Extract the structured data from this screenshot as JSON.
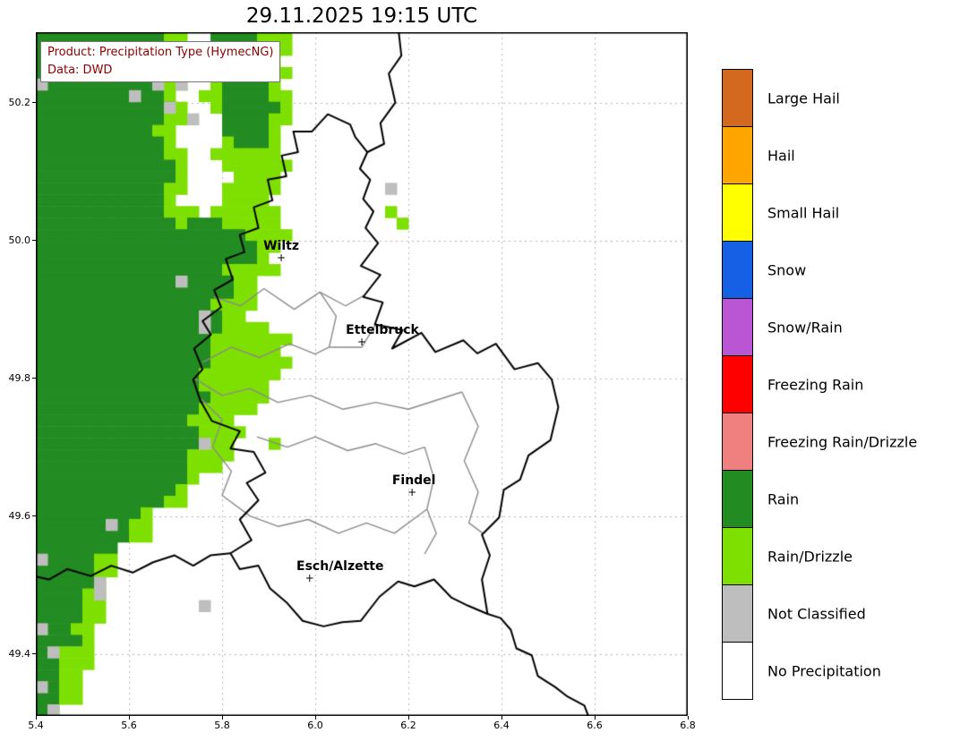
{
  "title": "29.11.2025 19:15 UTC",
  "info_box": {
    "line1": "Product: Precipitation Type (HymecNG)",
    "line2": "Data: DWD",
    "text_color": "#8b0000"
  },
  "axes": {
    "lon_range": [
      5.4,
      6.8
    ],
    "lat_range": [
      49.31,
      50.302
    ],
    "x_ticks": [
      "5.4",
      "5.6",
      "5.8",
      "6.0",
      "6.2",
      "6.4",
      "6.6",
      "6.8"
    ],
    "x_values": [
      5.4,
      5.6,
      5.8,
      6.0,
      6.2,
      6.4,
      6.6,
      6.8
    ],
    "y_ticks": [
      "50.2",
      "50.0",
      "49.8",
      "49.6",
      "49.4"
    ],
    "y_values": [
      50.2,
      50.0,
      49.8,
      49.6,
      49.4
    ]
  },
  "cities": [
    {
      "name": "Wiltz",
      "lon": 5.927,
      "lat": 49.975,
      "label_dx": 0
    },
    {
      "name": "Ettelbruck",
      "lon": 6.1,
      "lat": 49.853,
      "label_dx": 23
    },
    {
      "name": "Findel",
      "lon": 6.208,
      "lat": 49.634,
      "label_dx": 2
    },
    {
      "name": "Esch/Alzette",
      "lon": 5.988,
      "lat": 49.51,
      "label_dx": 34
    }
  ],
  "legend": {
    "entries": [
      {
        "label": "Large Hail",
        "color": "#d2691e"
      },
      {
        "label": "Hail",
        "color": "#ffa500"
      },
      {
        "label": "Small Hail",
        "color": "#ffff00"
      },
      {
        "label": "Snow",
        "color": "#1560e4"
      },
      {
        "label": "Snow/Rain",
        "color": "#ba55d3"
      },
      {
        "label": "Freezing Rain",
        "color": "#ff0000"
      },
      {
        "label": "Freezing Rain/Drizzle",
        "color": "#f08080"
      },
      {
        "label": "Rain",
        "color": "#228b22"
      },
      {
        "label": "Rain/Drizzle",
        "color": "#7ee000"
      },
      {
        "label": "Not Classified",
        "color": "#bebebe"
      },
      {
        "label": "No Precipitation",
        "color": "#ffffff"
      }
    ]
  },
  "map": {
    "colors": {
      "rain": "#228b22",
      "rain_drizzle": "#7ee000",
      "not_classified": "#bebebe",
      "background": "#ffffff",
      "grid": "#b5b5b5",
      "district_border": "#8a8a8a",
      "country_border": "#000000"
    },
    "regions": {
      "drizzle": [
        [
          5.37,
          50.32
        ],
        [
          5.712,
          50.32
        ],
        [
          5.732,
          50.262
        ],
        [
          5.7,
          50.22
        ],
        [
          5.735,
          50.188
        ],
        [
          5.7,
          50.152
        ],
        [
          5.73,
          50.1
        ],
        [
          5.712,
          50.065
        ],
        [
          5.762,
          50.03
        ],
        [
          5.8,
          50.06
        ],
        [
          5.822,
          50.092
        ],
        [
          5.79,
          50.126
        ],
        [
          5.8,
          50.17
        ],
        [
          5.762,
          50.21
        ],
        [
          5.778,
          50.262
        ],
        [
          5.762,
          50.32
        ],
        [
          5.958,
          50.32
        ],
        [
          5.93,
          50.24
        ],
        [
          5.955,
          50.19
        ],
        [
          5.925,
          50.14
        ],
        [
          5.94,
          50.1
        ],
        [
          5.9,
          50.065
        ],
        [
          5.93,
          50.03
        ],
        [
          5.935,
          50.005
        ],
        [
          5.9,
          49.985
        ],
        [
          5.92,
          49.955
        ],
        [
          5.86,
          49.935
        ],
        [
          5.88,
          49.9
        ],
        [
          5.845,
          49.885
        ],
        [
          5.95,
          49.865
        ],
        [
          5.93,
          49.835
        ],
        [
          5.95,
          49.8
        ],
        [
          5.9,
          49.785
        ],
        [
          5.87,
          49.755
        ],
        [
          5.815,
          49.745
        ],
        [
          5.84,
          49.71
        ],
        [
          5.79,
          49.665
        ],
        [
          5.745,
          49.65
        ],
        [
          5.72,
          49.615
        ],
        [
          5.65,
          49.6
        ],
        [
          5.63,
          49.565
        ],
        [
          5.58,
          49.555
        ],
        [
          5.555,
          49.52
        ],
        [
          5.56,
          49.475
        ],
        [
          5.53,
          49.445
        ],
        [
          5.525,
          49.4
        ],
        [
          5.5,
          49.375
        ],
        [
          5.515,
          49.345
        ],
        [
          5.48,
          49.325
        ],
        [
          5.455,
          49.295
        ],
        [
          5.37,
          49.295
        ]
      ],
      "rain_main": [
        [
          5.37,
          50.32
        ],
        [
          5.68,
          50.32
        ],
        [
          5.7,
          50.262
        ],
        [
          5.672,
          50.222
        ],
        [
          5.7,
          50.188
        ],
        [
          5.66,
          50.15
        ],
        [
          5.692,
          50.1
        ],
        [
          5.658,
          50.048
        ],
        [
          5.72,
          50.022
        ],
        [
          5.762,
          50.036
        ],
        [
          5.88,
          50.0
        ],
        [
          5.858,
          49.968
        ],
        [
          5.8,
          49.958
        ],
        [
          5.828,
          49.928
        ],
        [
          5.778,
          49.91
        ],
        [
          5.808,
          49.88
        ],
        [
          5.768,
          49.858
        ],
        [
          5.798,
          49.828
        ],
        [
          5.748,
          49.8
        ],
        [
          5.778,
          49.768
        ],
        [
          5.735,
          49.748
        ],
        [
          5.76,
          49.718
        ],
        [
          5.71,
          49.688
        ],
        [
          5.735,
          49.658
        ],
        [
          5.68,
          49.638
        ],
        [
          5.64,
          49.6
        ],
        [
          5.6,
          49.578
        ],
        [
          5.565,
          49.545
        ],
        [
          5.51,
          49.528
        ],
        [
          5.525,
          49.498
        ],
        [
          5.49,
          49.458
        ],
        [
          5.495,
          49.418
        ],
        [
          5.46,
          49.398
        ],
        [
          5.47,
          49.358
        ],
        [
          5.44,
          49.328
        ],
        [
          5.425,
          49.295
        ],
        [
          5.37,
          49.295
        ]
      ],
      "rain_north": [
        [
          5.788,
          50.32
        ],
        [
          5.882,
          50.32
        ],
        [
          5.908,
          50.205
        ],
        [
          5.898,
          50.128
        ],
        [
          5.808,
          50.142
        ],
        [
          5.798,
          50.215
        ]
      ]
    },
    "scatter": {
      "not_classified": [
        [
          5.65,
          50.225
        ],
        [
          5.708,
          50.218
        ],
        [
          5.727,
          50.18
        ],
        [
          5.41,
          50.22
        ],
        [
          5.62,
          50.208
        ],
        [
          5.68,
          50.196
        ],
        [
          5.723,
          49.936
        ],
        [
          5.752,
          49.89
        ],
        [
          5.765,
          49.878
        ],
        [
          5.76,
          49.703
        ],
        [
          5.569,
          49.58
        ],
        [
          5.42,
          49.533
        ],
        [
          5.525,
          49.498
        ],
        [
          5.54,
          49.488
        ],
        [
          5.76,
          49.47
        ],
        [
          5.415,
          49.432
        ],
        [
          5.442,
          49.397
        ],
        [
          5.412,
          49.359
        ],
        [
          5.435,
          49.32
        ],
        [
          6.163,
          50.079
        ]
      ],
      "rain_drizzle": [
        [
          6.163,
          50.046
        ],
        [
          6.185,
          50.03
        ],
        [
          5.925,
          49.703
        ]
      ]
    },
    "borders": {
      "luxembourg": [
        [
          6.027,
          50.183
        ],
        [
          6.075,
          50.168
        ],
        [
          6.086,
          50.15
        ],
        [
          6.112,
          50.128
        ],
        [
          6.096,
          50.104
        ],
        [
          6.118,
          50.088
        ],
        [
          6.103,
          50.06
        ],
        [
          6.125,
          50.042
        ],
        [
          6.108,
          50.018
        ],
        [
          6.135,
          49.996
        ],
        [
          6.098,
          49.963
        ],
        [
          6.14,
          49.95
        ],
        [
          6.103,
          49.918
        ],
        [
          6.145,
          49.91
        ],
        [
          6.128,
          49.878
        ],
        [
          6.188,
          49.87
        ],
        [
          6.165,
          49.843
        ],
        [
          6.228,
          49.866
        ],
        [
          6.258,
          49.838
        ],
        [
          6.318,
          49.855
        ],
        [
          6.348,
          49.836
        ],
        [
          6.388,
          49.85
        ],
        [
          6.428,
          49.813
        ],
        [
          6.478,
          49.822
        ],
        [
          6.508,
          49.798
        ],
        [
          6.522,
          49.758
        ],
        [
          6.505,
          49.71
        ],
        [
          6.458,
          49.688
        ],
        [
          6.44,
          49.653
        ],
        [
          6.405,
          49.638
        ],
        [
          6.395,
          49.598
        ],
        [
          6.358,
          49.573
        ],
        [
          6.375,
          49.543
        ],
        [
          6.358,
          49.508
        ],
        [
          6.37,
          49.458
        ],
        [
          6.328,
          49.47
        ],
        [
          6.292,
          49.482
        ],
        [
          6.255,
          49.508
        ],
        [
          6.213,
          49.498
        ],
        [
          6.178,
          49.505
        ],
        [
          6.138,
          49.483
        ],
        [
          6.098,
          49.448
        ],
        [
          6.058,
          49.446
        ],
        [
          6.018,
          49.44
        ],
        [
          5.973,
          49.448
        ],
        [
          5.938,
          49.475
        ],
        [
          5.903,
          49.495
        ],
        [
          5.878,
          49.528
        ],
        [
          5.838,
          49.523
        ],
        [
          5.818,
          49.546
        ],
        [
          5.863,
          49.565
        ],
        [
          5.838,
          49.595
        ],
        [
          5.878,
          49.623
        ],
        [
          5.853,
          49.648
        ],
        [
          5.893,
          49.663
        ],
        [
          5.868,
          49.693
        ],
        [
          5.818,
          49.698
        ],
        [
          5.838,
          49.723
        ],
        [
          5.778,
          49.738
        ],
        [
          5.753,
          49.768
        ],
        [
          5.738,
          49.798
        ],
        [
          5.758,
          49.813
        ],
        [
          5.74,
          49.843
        ],
        [
          5.776,
          49.863
        ],
        [
          5.758,
          49.883
        ],
        [
          5.798,
          49.903
        ],
        [
          5.783,
          49.928
        ],
        [
          5.823,
          49.943
        ],
        [
          5.808,
          49.973
        ],
        [
          5.848,
          49.983
        ],
        [
          5.838,
          50.008
        ],
        [
          5.878,
          50.018
        ],
        [
          5.868,
          50.048
        ],
        [
          5.908,
          50.058
        ],
        [
          5.898,
          50.088
        ],
        [
          5.938,
          50.093
        ],
        [
          5.928,
          50.123
        ],
        [
          5.963,
          50.128
        ],
        [
          5.953,
          50.158
        ],
        [
          5.993,
          50.158
        ]
      ],
      "belgium_germany": [
        [
          6.112,
          50.128
        ],
        [
          6.148,
          50.14
        ],
        [
          6.14,
          50.17
        ],
        [
          6.172,
          50.2
        ],
        [
          6.158,
          50.242
        ],
        [
          6.185,
          50.268
        ],
        [
          6.178,
          50.31
        ]
      ],
      "germany_france": [
        [
          6.37,
          49.458
        ],
        [
          6.398,
          49.452
        ],
        [
          6.42,
          49.435
        ],
        [
          6.432,
          49.408
        ],
        [
          6.465,
          49.398
        ],
        [
          6.478,
          49.368
        ],
        [
          6.515,
          49.352
        ],
        [
          6.542,
          49.338
        ],
        [
          6.578,
          49.325
        ],
        [
          6.592,
          49.3
        ]
      ],
      "belgium_france": [
        [
          5.818,
          49.546
        ],
        [
          5.775,
          49.543
        ],
        [
          5.738,
          49.528
        ],
        [
          5.698,
          49.543
        ],
        [
          5.652,
          49.533
        ],
        [
          5.608,
          49.518
        ],
        [
          5.562,
          49.528
        ],
        [
          5.518,
          49.513
        ],
        [
          5.468,
          49.523
        ],
        [
          5.428,
          49.508
        ],
        [
          5.395,
          49.513
        ]
      ],
      "districts": [
        [
          [
            5.782,
            49.918
          ],
          [
            5.84,
            49.905
          ],
          [
            5.89,
            49.93
          ],
          [
            5.955,
            49.9
          ],
          [
            6.01,
            49.925
          ],
          [
            6.065,
            49.905
          ],
          [
            6.105,
            49.92
          ]
        ],
        [
          [
            5.758,
            49.823
          ],
          [
            5.82,
            49.845
          ],
          [
            5.88,
            49.83
          ],
          [
            5.945,
            49.85
          ],
          [
            6.0,
            49.835
          ],
          [
            6.03,
            49.845
          ],
          [
            6.1,
            49.845
          ],
          [
            6.13,
            49.878
          ]
        ],
        [
          [
            6.01,
            49.925
          ],
          [
            6.045,
            49.89
          ],
          [
            6.03,
            49.845
          ]
        ],
        [
          [
            5.74,
            49.8
          ],
          [
            5.8,
            49.775
          ],
          [
            5.86,
            49.785
          ],
          [
            5.92,
            49.765
          ],
          [
            5.99,
            49.775
          ],
          [
            6.06,
            49.755
          ],
          [
            6.13,
            49.765
          ],
          [
            6.2,
            49.755
          ],
          [
            6.26,
            49.768
          ],
          [
            6.315,
            49.78
          ]
        ],
        [
          [
            5.875,
            49.715
          ],
          [
            5.94,
            49.7
          ],
          [
            6.0,
            49.715
          ],
          [
            6.07,
            49.695
          ],
          [
            6.13,
            49.705
          ],
          [
            6.19,
            49.69
          ],
          [
            6.235,
            49.7
          ]
        ],
        [
          [
            6.235,
            49.7
          ],
          [
            6.255,
            49.655
          ],
          [
            6.24,
            49.61
          ],
          [
            6.26,
            49.575
          ],
          [
            6.235,
            49.545
          ]
        ],
        [
          [
            5.86,
            49.6
          ],
          [
            5.92,
            49.585
          ],
          [
            5.985,
            49.595
          ],
          [
            6.05,
            49.575
          ],
          [
            6.11,
            49.59
          ],
          [
            6.17,
            49.575
          ],
          [
            6.24,
            49.61
          ]
        ],
        [
          [
            5.755,
            49.77
          ],
          [
            5.8,
            49.74
          ],
          [
            5.78,
            49.7
          ],
          [
            5.82,
            49.665
          ],
          [
            5.8,
            49.63
          ],
          [
            5.86,
            49.6
          ]
        ],
        [
          [
            6.315,
            49.78
          ],
          [
            6.35,
            49.73
          ],
          [
            6.32,
            49.68
          ],
          [
            6.35,
            49.635
          ],
          [
            6.33,
            49.59
          ],
          [
            6.36,
            49.575
          ]
        ]
      ]
    }
  }
}
